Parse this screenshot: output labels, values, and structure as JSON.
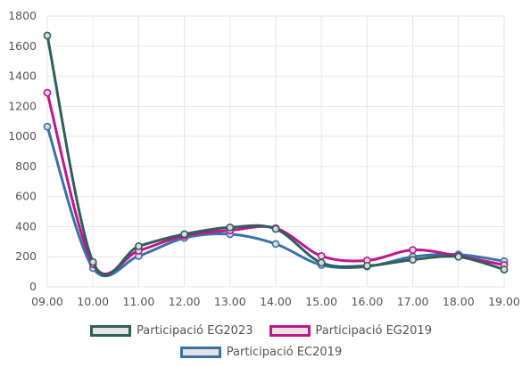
{
  "chart_data": {
    "type": "line",
    "title": "",
    "xlabel": "",
    "ylabel": "",
    "categories": [
      "09.00",
      "10.00",
      "11.00",
      "12.00",
      "13.00",
      "14.00",
      "15.00",
      "16.00",
      "17.00",
      "18.00",
      "19.00"
    ],
    "ylim": [
      0,
      1800
    ],
    "yticks": [
      "0",
      "200",
      "400",
      "600",
      "800",
      "1000",
      "1200",
      "1400",
      "1600",
      "1800"
    ],
    "grid": true,
    "legend_position": "bottom",
    "series": [
      {
        "name": "Participació EG2023",
        "color": "#2f5f5a",
        "values": [
          1670,
          165,
          270,
          350,
          395,
          385,
          160,
          140,
          180,
          200,
          115
        ]
      },
      {
        "name": "Participació EG2019",
        "color": "#c0168c",
        "values": [
          1290,
          150,
          240,
          340,
          375,
          390,
          205,
          175,
          245,
          205,
          145
        ]
      },
      {
        "name": "Participació EC2019",
        "color": "#3a72a6",
        "values": [
          1065,
          125,
          205,
          325,
          350,
          285,
          145,
          135,
          200,
          215,
          170
        ]
      }
    ]
  }
}
